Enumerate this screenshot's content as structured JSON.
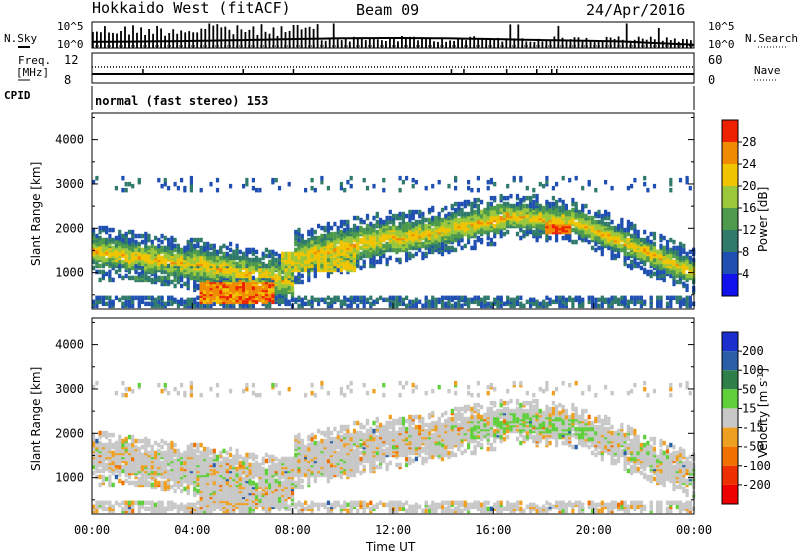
{
  "header": {
    "title": "Hokkaido West (fitACF)",
    "beam": "Beam 09",
    "date": "24/Apr/2016"
  },
  "top_panels": {
    "nsky_label": "N.Sky",
    "nsearch_label": "N.Search",
    "noise_ticks_left": [
      "10^5",
      "10^0"
    ],
    "noise_ticks_right": [
      "10^5",
      "10^0"
    ],
    "freq_label_lines": [
      "Freq.",
      "[MHz]"
    ],
    "freq_ticks": [
      "12",
      "8"
    ],
    "nave_label": "Nave",
    "nave_ticks": [
      "60",
      "0"
    ],
    "cpid_label": "CPID",
    "mode_text": "normal (fast stereo) 153"
  },
  "chart_data": [
    {
      "type": "heatmap",
      "name": "power-panel",
      "xlabel": "",
      "ylabel": "Slant Range [km]",
      "x_ticks": [
        "00:00",
        "04:00",
        "08:00",
        "12:00",
        "16:00",
        "20:00",
        "00:00"
      ],
      "xlim_hours": [
        0,
        24
      ],
      "y_ticks": [
        "1000",
        "2000",
        "3000",
        "4000"
      ],
      "ylim": [
        180,
        4600
      ],
      "colorbar_label": "Power [dB]",
      "colorbar_ticks": [
        "4",
        "8",
        "12",
        "16",
        "20",
        "24",
        "28"
      ],
      "colorbar_range": [
        0,
        32
      ],
      "colorbar_colors": [
        "#1111ee",
        "#1f4fb0",
        "#2f7a6a",
        "#4d9a4d",
        "#9bc73b",
        "#f0c400",
        "#f08a00",
        "#ee2200"
      ]
    },
    {
      "type": "heatmap",
      "name": "velocity-panel",
      "xlabel": "Time UT",
      "ylabel": "Slant Range [km]",
      "x_ticks": [
        "00:00",
        "04:00",
        "08:00",
        "12:00",
        "16:00",
        "20:00",
        "00:00"
      ],
      "xlim_hours": [
        0,
        24
      ],
      "y_ticks": [
        "1000",
        "2000",
        "3000",
        "4000"
      ],
      "ylim": [
        180,
        4600
      ],
      "colorbar_label": "Velocity [m s^-1]",
      "colorbar_ticks": [
        "200",
        "100",
        "50",
        "15",
        "-15",
        "-50",
        "-100",
        "-200"
      ],
      "colorbar_colors": [
        "#1a2fcc",
        "#2a5fa8",
        "#2f7f4a",
        "#5fd03a",
        "#c8c8c8",
        "#f0a020",
        "#f07000",
        "#ee3000",
        "#ee0000"
      ]
    }
  ]
}
